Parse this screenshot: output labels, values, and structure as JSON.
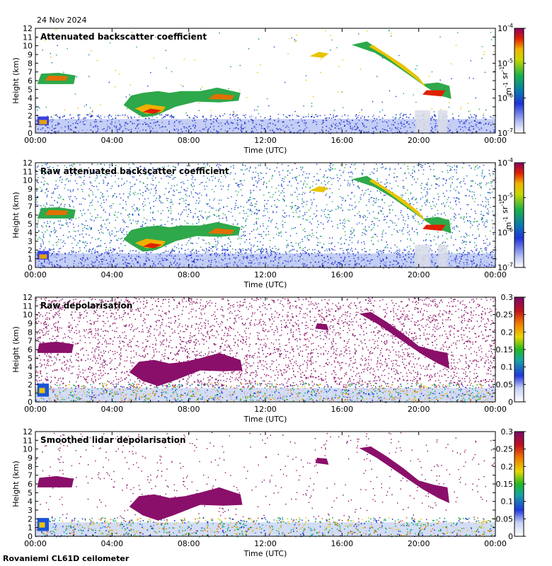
{
  "date": "24 Nov 2024",
  "instrument": "Rovaniemi CL61D ceilometer",
  "chart_data": [
    {
      "type": "heatmap",
      "title": "Attenuated backscatter coefficient",
      "xlabel": "Time (UTC)",
      "ylabel": "Height (km)",
      "xticks": [
        "00:00",
        "04:00",
        "08:00",
        "12:00",
        "16:00",
        "20:00",
        "00:00"
      ],
      "yticks": [
        0,
        1,
        2,
        3,
        4,
        5,
        6,
        7,
        8,
        9,
        10,
        11,
        12
      ],
      "ylim": [
        0,
        12
      ],
      "xlim_hours": [
        0,
        24
      ],
      "colorbar": {
        "scale": "log",
        "ticks": [
          "10",
          "10",
          "10",
          "10"
        ],
        "exponents": [
          "-7",
          "-6",
          "-5",
          "-4"
        ],
        "unit": "m-1 sr-1",
        "unit_base": [
          "m",
          "sr"
        ],
        "unit_exp": [
          "-1",
          "-1"
        ]
      },
      "features": [
        {
          "name": "low cloud",
          "t": [
            0.1,
            0.7
          ],
          "h": [
            0.9,
            1.8
          ]
        },
        {
          "name": "mid cloud",
          "t": [
            0.1,
            2.0
          ],
          "h": [
            5.5,
            6.9
          ]
        },
        {
          "name": "cloud band",
          "t": [
            4.6,
            10.6
          ],
          "h": [
            1.6,
            5.2
          ]
        },
        {
          "name": "high cloud",
          "t": [
            14.3,
            21.7
          ],
          "h": [
            3.6,
            10.5
          ]
        }
      ]
    },
    {
      "type": "heatmap",
      "title": "Raw attenuated backscatter coefficient",
      "xlabel": "Time (UTC)",
      "ylabel": "Height (km)",
      "xticks": [
        "00:00",
        "04:00",
        "08:00",
        "12:00",
        "16:00",
        "20:00",
        "00:00"
      ],
      "yticks": [
        0,
        1,
        2,
        3,
        4,
        5,
        6,
        7,
        8,
        9,
        10,
        11,
        12
      ],
      "ylim": [
        0,
        12
      ],
      "colorbar": {
        "scale": "log",
        "ticks": [
          "10",
          "10",
          "10",
          "10"
        ],
        "exponents": [
          "-7",
          "-6",
          "-5",
          "-4"
        ],
        "unit": "m-1 sr-1",
        "unit_base": [
          "m",
          "sr"
        ],
        "unit_exp": [
          "-1",
          "-1"
        ]
      }
    },
    {
      "type": "heatmap",
      "title": "Raw depolarisation",
      "xlabel": "Time (UTC)",
      "ylabel": "Height (km)",
      "xticks": [
        "00:00",
        "04:00",
        "08:00",
        "12:00",
        "16:00",
        "20:00",
        "00:00"
      ],
      "yticks": [
        0,
        1,
        2,
        3,
        4,
        5,
        6,
        7,
        8,
        9,
        10,
        11,
        12
      ],
      "ylim": [
        0,
        12
      ],
      "colorbar": {
        "scale": "linear",
        "ticks": [
          "0",
          "0.05",
          "0.1",
          "0.15",
          "0.2",
          "0.25",
          "0.3"
        ]
      }
    },
    {
      "type": "heatmap",
      "title": "Smoothed lidar depolarisation",
      "xlabel": "Time (UTC)",
      "ylabel": "Height (km)",
      "xticks": [
        "00:00",
        "04:00",
        "08:00",
        "12:00",
        "16:00",
        "20:00",
        "00:00"
      ],
      "yticks": [
        0,
        1,
        2,
        3,
        4,
        5,
        6,
        7,
        8,
        9,
        10,
        11,
        12
      ],
      "ylim": [
        0,
        12
      ],
      "colorbar": {
        "scale": "linear",
        "ticks": [
          "0",
          "0.05",
          "0.1",
          "0.15",
          "0.2",
          "0.25",
          "0.3"
        ]
      }
    }
  ]
}
